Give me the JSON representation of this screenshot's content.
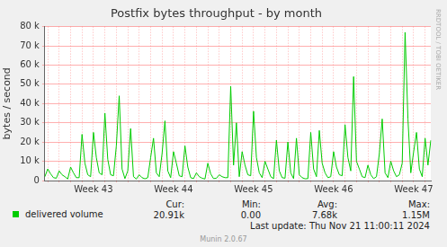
{
  "chart_data": {
    "type": "line",
    "title": "Postfix bytes throughput - by month",
    "y_label": "bytes / second",
    "categories": [
      null,
      null,
      null,
      null,
      null,
      null,
      null,
      null,
      null,
      null,
      null,
      null,
      null,
      null,
      null,
      null,
      null,
      "Week 43",
      null,
      null,
      null,
      null,
      null,
      null,
      null,
      null,
      null,
      null,
      null,
      null,
      null,
      null,
      null,
      null,
      null,
      null,
      null,
      null,
      null,
      null,
      null,
      null,
      null,
      null,
      null,
      "Week 44",
      null,
      null,
      null,
      null,
      null,
      null,
      null,
      null,
      null,
      null,
      null,
      null,
      null,
      null,
      null,
      null,
      null,
      null,
      null,
      null,
      null,
      null,
      null,
      null,
      null,
      null,
      null,
      "Week 45",
      null,
      null,
      null,
      null,
      null,
      null,
      null,
      null,
      null,
      null,
      null,
      null,
      null,
      null,
      null,
      null,
      null,
      null,
      null,
      null,
      null,
      null,
      null,
      null,
      null,
      null,
      null,
      "Week 46",
      null,
      null,
      null,
      null,
      null,
      null,
      null,
      null,
      null,
      null,
      null,
      null,
      null,
      null,
      null,
      null,
      null,
      null,
      null,
      null,
      null,
      null,
      null,
      null,
      null,
      null,
      null,
      "Week 47",
      null,
      null,
      null,
      null,
      null,
      null
    ],
    "series": [
      {
        "name": "delivered volume",
        "color": "#00cc00",
        "values": [
          2000,
          6000,
          3500,
          1500,
          1200,
          5000,
          3000,
          2000,
          800,
          7000,
          4000,
          1500,
          1500,
          24000,
          9000,
          3000,
          2000,
          25000,
          12000,
          4000,
          3000,
          35000,
          11000,
          3000,
          2500,
          18000,
          44000,
          6000,
          1000,
          5000,
          27000,
          2000,
          800,
          3000,
          1500,
          900,
          1500,
          12000,
          22000,
          4000,
          2000,
          14000,
          31000,
          5000,
          1500,
          15000,
          9000,
          2500,
          2000,
          18000,
          7000,
          1500,
          1000,
          4000,
          2000,
          1200,
          800,
          9000,
          3500,
          1000,
          1200,
          3000,
          2000,
          1500,
          1500,
          49000,
          8000,
          30000,
          2000,
          15000,
          8000,
          3000,
          2500,
          36000,
          12000,
          4000,
          1500,
          10000,
          6000,
          2000,
          1000,
          21000,
          5000,
          1500,
          1200,
          20000,
          4000,
          1000,
          22000,
          3000,
          1500,
          900,
          1000,
          25000,
          6000,
          2000,
          26000,
          9000,
          4000,
          1500,
          2000,
          15000,
          7000,
          3000,
          2500,
          29000,
          12000,
          5000,
          54000,
          10000,
          6000,
          2000,
          1500,
          8000,
          3000,
          1000,
          2000,
          14000,
          32000,
          4000,
          1500,
          10000,
          5000,
          2000,
          3000,
          9000,
          77000,
          32000,
          4000,
          15000,
          25000,
          6000,
          2000,
          22000,
          8000,
          20910
        ]
      }
    ],
    "ylim": [
      0,
      80000
    ],
    "yticks": [
      0,
      {
        "value": 10000,
        "label": "10 k"
      },
      {
        "value": 20000,
        "label": "20 k"
      },
      {
        "value": 30000,
        "label": "30 k"
      },
      {
        "value": 40000,
        "label": "40 k"
      },
      {
        "value": 50000,
        "label": "50 k"
      },
      {
        "value": 60000,
        "label": "60 k"
      },
      {
        "value": 70000,
        "label": "70 k"
      },
      {
        "value": 80000,
        "label": "80 k"
      }
    ],
    "grid": true,
    "stats": [
      {
        "label": "Cur:",
        "text": "20.91k"
      },
      {
        "label": "Min:",
        "text": "0.00"
      },
      {
        "label": "Avg:",
        "text": "7.68k"
      },
      {
        "label": "Max:",
        "text": "1.15M"
      }
    ],
    "footer": "Last update: Thu Nov 21 11:00:11 2024",
    "credit": "Munin 2.0.67",
    "side_text": "RRDTOOL / TOBI OETIKER"
  }
}
